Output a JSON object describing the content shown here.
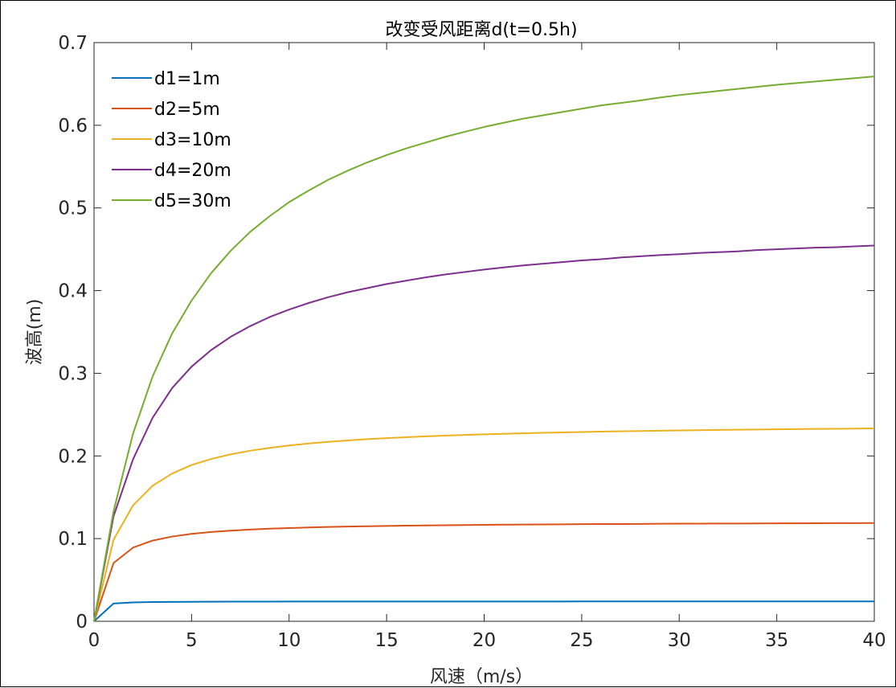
{
  "chart_data": {
    "type": "line",
    "title": "改变受风距离d(t=0.5h)",
    "xlabel": "风速（m/s）",
    "ylabel": "波高(m)",
    "xlim": [
      0,
      40
    ],
    "ylim": [
      0,
      0.7
    ],
    "xticks": [
      "0",
      "5",
      "10",
      "15",
      "20",
      "25",
      "30",
      "35",
      "40"
    ],
    "yticks": [
      "0",
      "0.1",
      "0.2",
      "0.3",
      "0.4",
      "0.5",
      "0.6",
      "0.7"
    ],
    "grid": false,
    "legend_position": "top-left",
    "x": [
      0,
      1,
      2,
      3,
      4,
      5,
      6,
      7,
      8,
      9,
      10,
      11,
      12,
      13,
      14,
      15,
      16,
      17,
      18,
      19,
      20,
      21,
      22,
      23,
      24,
      25,
      26,
      27,
      28,
      29,
      30,
      31,
      32,
      33,
      34,
      35,
      36,
      37,
      38,
      39,
      40
    ],
    "series": [
      {
        "name": "d1=1m",
        "color": "#0072BD",
        "values": [
          0,
          0.0215,
          0.0228,
          0.0233,
          0.0235,
          0.0236,
          0.0237,
          0.0238,
          0.0238,
          0.0238,
          0.0239,
          0.0239,
          0.0239,
          0.0239,
          0.0239,
          0.0239,
          0.0239,
          0.0239,
          0.0239,
          0.0239,
          0.0239,
          0.0239,
          0.0239,
          0.0239,
          0.0239,
          0.024,
          0.024,
          0.024,
          0.024,
          0.024,
          0.024,
          0.024,
          0.024,
          0.024,
          0.024,
          0.024,
          0.024,
          0.024,
          0.024,
          0.024,
          0.024
        ]
      },
      {
        "name": "d2=5m",
        "color": "#D95319",
        "values": [
          0,
          0.0705,
          0.0891,
          0.0976,
          0.1025,
          0.1057,
          0.108,
          0.1096,
          0.1109,
          0.112,
          0.1128,
          0.1135,
          0.1141,
          0.1146,
          0.115,
          0.1153,
          0.1157,
          0.116,
          0.1162,
          0.1164,
          0.1167,
          0.1169,
          0.117,
          0.1172,
          0.1173,
          0.1175,
          0.1176,
          0.1177,
          0.1178,
          0.118,
          0.1181,
          0.1181,
          0.1182,
          0.1183,
          0.1184,
          0.1185,
          0.1185,
          0.1186,
          0.1187,
          0.1187,
          0.1188
        ]
      },
      {
        "name": "d3=10m",
        "color": "#EDB120",
        "values": [
          0,
          0.0987,
          0.1402,
          0.1639,
          0.1787,
          0.189,
          0.1963,
          0.202,
          0.2063,
          0.2098,
          0.2127,
          0.2151,
          0.2171,
          0.2188,
          0.2203,
          0.2216,
          0.2227,
          0.2237,
          0.2246,
          0.2254,
          0.2262,
          0.2268,
          0.2274,
          0.228,
          0.2285,
          0.229,
          0.2294,
          0.2298,
          0.2302,
          0.2305,
          0.2309,
          0.2312,
          0.2315,
          0.2317,
          0.232,
          0.2322,
          0.2325,
          0.2327,
          0.2329,
          0.2331,
          0.2333
        ]
      },
      {
        "name": "d4=20m",
        "color": "#7E2F8E",
        "values": [
          0,
          0.127,
          0.196,
          0.246,
          0.282,
          0.308,
          0.328,
          0.344,
          0.357,
          0.368,
          0.377,
          0.385,
          0.392,
          0.398,
          0.403,
          0.408,
          0.412,
          0.416,
          0.4195,
          0.4225,
          0.4255,
          0.428,
          0.4305,
          0.4325,
          0.4345,
          0.4365,
          0.438,
          0.44,
          0.4415,
          0.443,
          0.444,
          0.4455,
          0.4465,
          0.4475,
          0.449,
          0.45,
          0.451,
          0.452,
          0.4525,
          0.4535,
          0.4545
        ]
      },
      {
        "name": "d5=30m",
        "color": "#77AC30",
        "values": [
          0,
          0.133,
          0.227,
          0.296,
          0.348,
          0.388,
          0.421,
          0.448,
          0.471,
          0.49,
          0.507,
          0.521,
          0.534,
          0.545,
          0.555,
          0.564,
          0.572,
          0.579,
          0.586,
          0.592,
          0.598,
          0.603,
          0.608,
          0.612,
          0.616,
          0.62,
          0.624,
          0.627,
          0.63,
          0.6335,
          0.6365,
          0.639,
          0.6415,
          0.644,
          0.6465,
          0.649,
          0.651,
          0.653,
          0.655,
          0.657,
          0.659
        ]
      }
    ]
  }
}
